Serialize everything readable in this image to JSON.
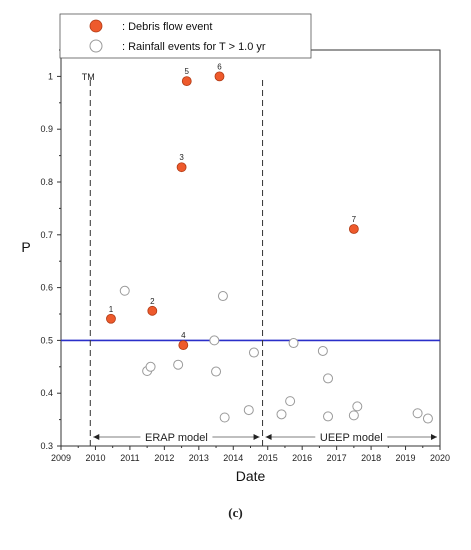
{
  "chart_data": {
    "type": "scatter",
    "xlabel": "Date",
    "ylabel": "P",
    "xlim": [
      2009,
      2020
    ],
    "ylim": [
      0.3,
      1.05
    ],
    "xticks": [
      "2009",
      "2010",
      "2011",
      "2012",
      "2013",
      "2014",
      "2015",
      "2016",
      "2017",
      "2018",
      "2019",
      "2020"
    ],
    "yticks": [
      "0.3",
      "0.4",
      "0.5",
      "0.6",
      "0.7",
      "0.8",
      "0.9",
      "1"
    ],
    "threshold": {
      "value": 0.5,
      "color": "#2a2fc9"
    },
    "legend": {
      "placement": "top-left",
      "items": [
        {
          "label": ": Debris flow event",
          "marker": "filled",
          "color": "#ee5a2c"
        },
        {
          "label": ": Rainfall events for T > 1.0 yr",
          "marker": "hollow",
          "color": "#9a9a9a"
        }
      ]
    },
    "vlines": [
      {
        "x": 2009.85,
        "label": "TM"
      },
      {
        "x": 2014.85,
        "label": ""
      }
    ],
    "periods": [
      {
        "label": "ERAP model",
        "x_start": 2009.85,
        "x_end": 2014.85
      },
      {
        "label": "UEEP model",
        "x_start": 2014.85,
        "x_end": 2020
      }
    ],
    "series": [
      {
        "name": ": Debris flow event",
        "color": "#ee5a2c",
        "points": [
          {
            "x": 2010.45,
            "y": 0.541,
            "label": "1"
          },
          {
            "x": 2011.65,
            "y": 0.556,
            "label": "2"
          },
          {
            "x": 2012.5,
            "y": 0.828,
            "label": "3"
          },
          {
            "x": 2012.55,
            "y": 0.491,
            "label": "4"
          },
          {
            "x": 2012.65,
            "y": 0.991,
            "label": "5"
          },
          {
            "x": 2013.6,
            "y": 1.0,
            "label": "6"
          },
          {
            "x": 2017.5,
            "y": 0.711,
            "label": "7"
          }
        ]
      },
      {
        "name": ": Rainfall events for T > 1.0 yr",
        "color": "#9a9a9a",
        "points": [
          {
            "x": 2010.85,
            "y": 0.594
          },
          {
            "x": 2011.5,
            "y": 0.442
          },
          {
            "x": 2011.6,
            "y": 0.45
          },
          {
            "x": 2012.4,
            "y": 0.454
          },
          {
            "x": 2013.45,
            "y": 0.5
          },
          {
            "x": 2013.5,
            "y": 0.441
          },
          {
            "x": 2013.7,
            "y": 0.584
          },
          {
            "x": 2013.75,
            "y": 0.354
          },
          {
            "x": 2014.45,
            "y": 0.368
          },
          {
            "x": 2014.6,
            "y": 0.477
          },
          {
            "x": 2015.4,
            "y": 0.36
          },
          {
            "x": 2015.65,
            "y": 0.385
          },
          {
            "x": 2015.75,
            "y": 0.495
          },
          {
            "x": 2016.6,
            "y": 0.48
          },
          {
            "x": 2016.75,
            "y": 0.428
          },
          {
            "x": 2016.75,
            "y": 0.356
          },
          {
            "x": 2017.5,
            "y": 0.358
          },
          {
            "x": 2017.6,
            "y": 0.375
          },
          {
            "x": 2019.35,
            "y": 0.362
          },
          {
            "x": 2019.65,
            "y": 0.352
          }
        ]
      }
    ]
  },
  "caption": "(c)"
}
